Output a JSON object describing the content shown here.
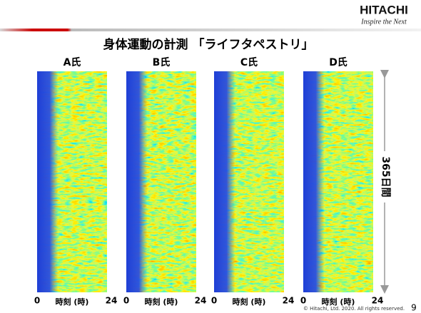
{
  "header": {
    "logo": "HITACHI",
    "tagline": "Inspire the Next"
  },
  "title": "身体運動の計測 「ライフタペストリ」",
  "panels": [
    {
      "label": "A氏",
      "x_start": "0",
      "x_label": "時刻 (時)",
      "x_end": "24"
    },
    {
      "label": "B氏",
      "x_start": "0",
      "x_label": "時刻 (時)",
      "x_end": "24"
    },
    {
      "label": "C氏",
      "x_start": "0",
      "x_label": "時刻 (時)",
      "x_end": "24"
    },
    {
      "label": "D氏",
      "x_start": "0",
      "x_label": "時刻 (時)",
      "x_end": "24"
    }
  ],
  "y_label": "365日間",
  "footer": {
    "copyright": "© Hitachi, Ltd. 2020. All rights reserved.",
    "page": "9"
  }
}
